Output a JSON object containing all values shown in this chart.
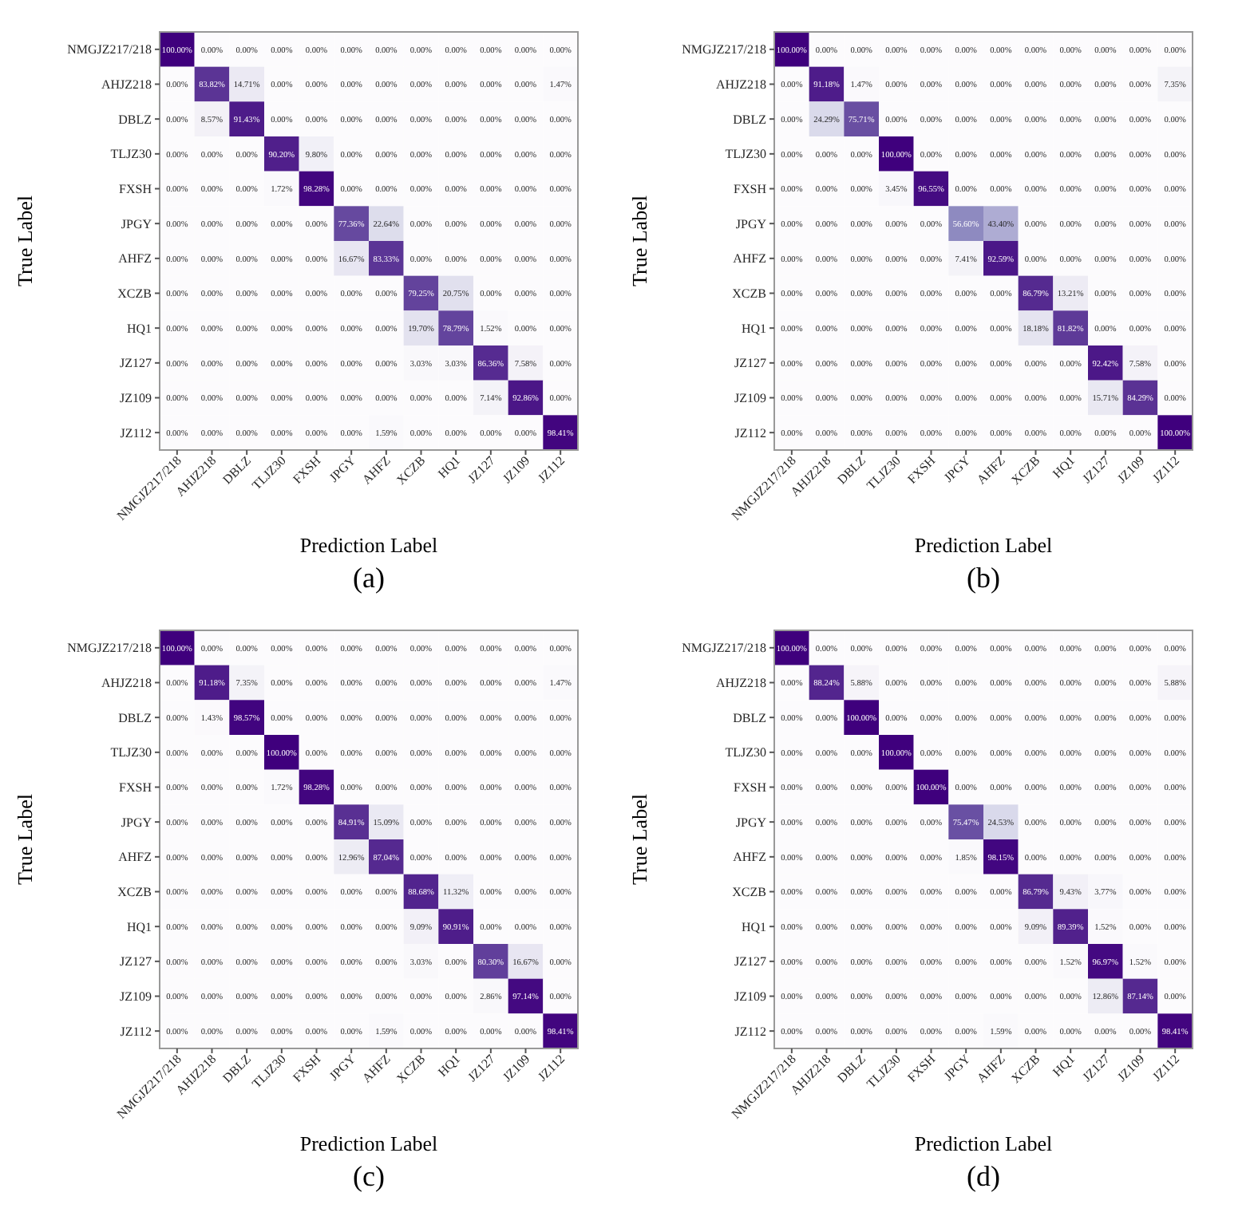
{
  "chart_data": [
    {
      "type": "heatmap",
      "title": "(a)",
      "xlabel": "Prediction Label",
      "ylabel": "True Label",
      "categories": [
        "NMGJZ217/218",
        "AHJZ218",
        "DBLZ",
        "TLJZ30",
        "FXSH",
        "JPGY",
        "AHFZ",
        "XCZB",
        "HQ1",
        "JZ127",
        "JZ109",
        "JZ112"
      ],
      "y_categories": [
        "NMGJZ217/218",
        "AHJZ218",
        "DBLZ",
        "TLJZ30",
        "FXSH",
        "JPGY",
        "AHFZ",
        "XCZB",
        "HQ1",
        "JZ127",
        "JZ109",
        "JZ112"
      ],
      "cells": [
        [
          100,
          0,
          0,
          0,
          0,
          0,
          0,
          0,
          0,
          0,
          0,
          0
        ],
        [
          0,
          83.82,
          14.71,
          0,
          0,
          0,
          0,
          0,
          0,
          0,
          0,
          1.47
        ],
        [
          0,
          8.57,
          91.43,
          0,
          0,
          0,
          0,
          0,
          0,
          0,
          0,
          0
        ],
        [
          0,
          0,
          0,
          90.2,
          9.8,
          0,
          0,
          0,
          0,
          0,
          0,
          0
        ],
        [
          0,
          0,
          0,
          1.72,
          98.28,
          0,
          0,
          0,
          0,
          0,
          0,
          0
        ],
        [
          0,
          0,
          0,
          0,
          0,
          77.36,
          22.64,
          0,
          0,
          0,
          0,
          0
        ],
        [
          0,
          0,
          0,
          0,
          0,
          16.67,
          83.33,
          0,
          0,
          0,
          0,
          0
        ],
        [
          0,
          0,
          0,
          0,
          0,
          0,
          0,
          79.25,
          20.75,
          0,
          0,
          0
        ],
        [
          0,
          0,
          0,
          0,
          0,
          0,
          0,
          19.7,
          78.79,
          1.52,
          0,
          0
        ],
        [
          0,
          0,
          0,
          0,
          0,
          0,
          0,
          3.03,
          3.03,
          86.36,
          7.58,
          0
        ],
        [
          0,
          0,
          0,
          0,
          0,
          0,
          0,
          0,
          0,
          7.14,
          92.86,
          0
        ],
        [
          0,
          0,
          0,
          0,
          0,
          0,
          1.59,
          0,
          0,
          0,
          0,
          98.41
        ]
      ],
      "cell_labels": [
        [
          "100.00%",
          "0.00%",
          "0.00%",
          "0.00%",
          "0.00%",
          "0.00%",
          "0.00%",
          "0.00%",
          "0.00%",
          "0.00%",
          "0.00%",
          "0.00%"
        ],
        [
          "0.00%",
          "83.82%",
          "14.71%",
          "0.00%",
          "0.00%",
          "0.00%",
          "0.00%",
          "0.00%",
          "0.00%",
          "0.00%",
          "0.00%",
          "1.47%"
        ],
        [
          "0.00%",
          "8.57%",
          "91.43%",
          "0.00%",
          "0.00%",
          "0.00%",
          "0.00%",
          "0.00%",
          "0.00%",
          "0.00%",
          "0.00%",
          "0.00%"
        ],
        [
          "0.00%",
          "0.00%",
          "0.00%",
          "90.20%",
          "9.80%",
          "0.00%",
          "0.00%",
          "0.00%",
          "0.00%",
          "0.00%",
          "0.00%",
          "0.00%"
        ],
        [
          "0.00%",
          "0.00%",
          "0.00%",
          "1.72%",
          "98.28%",
          "0.00%",
          "0.00%",
          "0.00%",
          "0.00%",
          "0.00%",
          "0.00%",
          "0.00%"
        ],
        [
          "0.00%",
          "0.00%",
          "0.00%",
          "0.00%",
          "0.00%",
          "77.36%",
          "22.64%",
          "0.00%",
          "0.00%",
          "0.00%",
          "0.00%",
          "0.00%"
        ],
        [
          "0.00%",
          "0.00%",
          "0.00%",
          "0.00%",
          "0.00%",
          "16.67%",
          "83.33%",
          "0.00%",
          "0.00%",
          "0.00%",
          "0.00%",
          "0.00%"
        ],
        [
          "0.00%",
          "0.00%",
          "0.00%",
          "0.00%",
          "0.00%",
          "0.00%",
          "0.00%",
          "79.25%",
          "20.75%",
          "0.00%",
          "0.00%",
          "0.00%"
        ],
        [
          "0.00%",
          "0.00%",
          "0.00%",
          "0.00%",
          "0.00%",
          "0.00%",
          "0.00%",
          "19.70%",
          "78.79%",
          "1.52%",
          "0.00%",
          "0.00%"
        ],
        [
          "0.00%",
          "0.00%",
          "0.00%",
          "0.00%",
          "0.00%",
          "0.00%",
          "0.00%",
          "3.03%",
          "3.03%",
          "86.36%",
          "7.58%",
          "0.00%"
        ],
        [
          "0.00%",
          "0.00%",
          "0.00%",
          "0.00%",
          "0.00%",
          "0.00%",
          "0.00%",
          "0.00%",
          "0.00%",
          "7.14%",
          "92.86%",
          "0.00%"
        ],
        [
          "0.00%",
          "0.00%",
          "0.00%",
          "0.00%",
          "0.00%",
          "0.00%",
          "1.59%",
          "0.00%",
          "0.00%",
          "0.00%",
          "0.00%",
          "98.41%"
        ]
      ]
    },
    {
      "type": "heatmap",
      "title": "(b)",
      "xlabel": "Prediction Label",
      "ylabel": "True Label",
      "categories": [
        "NMGJZ217/218",
        "AHJZ218",
        "DBLZ",
        "TLJZ30",
        "FXSH",
        "JPGY",
        "AHFZ",
        "XCZB",
        "HQ1",
        "JZ127",
        "JZ109",
        "JZ112"
      ],
      "y_categories": [
        "NMGJZ217/218",
        "AHJZ218",
        "DBLZ",
        "TLJZ30",
        "FXSH",
        "JPGY",
        "AHFZ",
        "XCZB",
        "HQ1",
        "JZ127",
        "JZ109",
        "JZ112"
      ],
      "cells": [
        [
          100,
          0,
          0,
          0,
          0,
          0,
          0,
          0,
          0,
          0,
          0,
          0
        ],
        [
          0,
          91.18,
          1.47,
          0,
          0,
          0,
          0,
          0,
          0,
          0,
          0,
          7.35
        ],
        [
          0,
          24.29,
          75.71,
          0,
          0,
          0,
          0,
          0,
          0,
          0,
          0,
          0
        ],
        [
          0,
          0,
          0,
          100,
          0,
          0,
          0,
          0,
          0,
          0,
          0,
          0
        ],
        [
          0,
          0,
          0,
          3.45,
          96.55,
          0,
          0,
          0,
          0,
          0,
          0,
          0
        ],
        [
          0,
          0,
          0,
          0,
          0,
          56.6,
          43.4,
          0,
          0,
          0,
          0,
          0
        ],
        [
          0,
          0,
          0,
          0,
          0,
          7.41,
          92.59,
          0,
          0,
          0,
          0,
          0
        ],
        [
          0,
          0,
          0,
          0,
          0,
          0,
          0,
          86.79,
          13.21,
          0,
          0,
          0
        ],
        [
          0,
          0,
          0,
          0,
          0,
          0,
          0,
          18.18,
          81.82,
          0,
          0,
          0
        ],
        [
          0,
          0,
          0,
          0,
          0,
          0,
          0,
          0,
          0,
          92.42,
          7.58,
          0
        ],
        [
          0,
          0,
          0,
          0,
          0,
          0,
          0,
          0,
          0,
          15.71,
          84.29,
          0
        ],
        [
          0,
          0,
          0,
          0,
          0,
          0,
          0,
          0,
          0,
          0,
          0,
          100
        ]
      ],
      "cell_labels": [
        [
          "100.00%",
          "0.00%",
          "0.00%",
          "0.00%",
          "0.00%",
          "0.00%",
          "0.00%",
          "0.00%",
          "0.00%",
          "0.00%",
          "0.00%",
          "0.00%"
        ],
        [
          "0.00%",
          "91.18%",
          "1.47%",
          "0.00%",
          "0.00%",
          "0.00%",
          "0.00%",
          "0.00%",
          "0.00%",
          "0.00%",
          "0.00%",
          "7.35%"
        ],
        [
          "0.00%",
          "24.29%",
          "75.71%",
          "0.00%",
          "0.00%",
          "0.00%",
          "0.00%",
          "0.00%",
          "0.00%",
          "0.00%",
          "0.00%",
          "0.00%"
        ],
        [
          "0.00%",
          "0.00%",
          "0.00%",
          "100.00%",
          "0.00%",
          "0.00%",
          "0.00%",
          "0.00%",
          "0.00%",
          "0.00%",
          "0.00%",
          "0.00%"
        ],
        [
          "0.00%",
          "0.00%",
          "0.00%",
          "3.45%",
          "96.55%",
          "0.00%",
          "0.00%",
          "0.00%",
          "0.00%",
          "0.00%",
          "0.00%",
          "0.00%"
        ],
        [
          "0.00%",
          "0.00%",
          "0.00%",
          "0.00%",
          "0.00%",
          "56.60%",
          "43.40%",
          "0.00%",
          "0.00%",
          "0.00%",
          "0.00%",
          "0.00%"
        ],
        [
          "0.00%",
          "0.00%",
          "0.00%",
          "0.00%",
          "0.00%",
          "7.41%",
          "92.59%",
          "0.00%",
          "0.00%",
          "0.00%",
          "0.00%",
          "0.00%"
        ],
        [
          "0.00%",
          "0.00%",
          "0.00%",
          "0.00%",
          "0.00%",
          "0.00%",
          "0.00%",
          "86.79%",
          "13.21%",
          "0.00%",
          "0.00%",
          "0.00%"
        ],
        [
          "0.00%",
          "0.00%",
          "0.00%",
          "0.00%",
          "0.00%",
          "0.00%",
          "0.00%",
          "18.18%",
          "81.82%",
          "0.00%",
          "0.00%",
          "0.00%"
        ],
        [
          "0.00%",
          "0.00%",
          "0.00%",
          "0.00%",
          "0.00%",
          "0.00%",
          "0.00%",
          "0.00%",
          "0.00%",
          "92.42%",
          "7.58%",
          "0.00%"
        ],
        [
          "0.00%",
          "0.00%",
          "0.00%",
          "0.00%",
          "0.00%",
          "0.00%",
          "0.00%",
          "0.00%",
          "0.00%",
          "15.71%",
          "84.29%",
          "0.00%"
        ],
        [
          "0.00%",
          "0.00%",
          "0.00%",
          "0.00%",
          "0.00%",
          "0.00%",
          "0.00%",
          "0.00%",
          "0.00%",
          "0.00%",
          "0.00%",
          "100.00%"
        ]
      ]
    },
    {
      "type": "heatmap",
      "title": "(c)",
      "xlabel": "Prediction Label",
      "ylabel": "True Label",
      "categories": [
        "NMGJZ217/218",
        "AHJZ218",
        "DBLZ",
        "TLJZ30",
        "FXSH",
        "JPGY",
        "AHFZ",
        "XCZB",
        "HQ1",
        "JZ127",
        "JZ109",
        "JZ112"
      ],
      "y_categories": [
        "NMGJZ217/218",
        "AHJZ218",
        "DBLZ",
        "TLJZ30",
        "FXSH",
        "JPGY",
        "AHFZ",
        "XCZB",
        "HQ1",
        "JZ127",
        "JZ109",
        "JZ112"
      ],
      "cells": [
        [
          100,
          0,
          0,
          0,
          0,
          0,
          0,
          0,
          0,
          0,
          0,
          0
        ],
        [
          0,
          91.18,
          7.35,
          0,
          0,
          0,
          0,
          0,
          0,
          0,
          0,
          1.47
        ],
        [
          0,
          1.43,
          98.57,
          0,
          0,
          0,
          0,
          0,
          0,
          0,
          0,
          0
        ],
        [
          0,
          0,
          0,
          100,
          0,
          0,
          0,
          0,
          0,
          0,
          0,
          0
        ],
        [
          0,
          0,
          0,
          1.72,
          98.28,
          0,
          0,
          0,
          0,
          0,
          0,
          0
        ],
        [
          0,
          0,
          0,
          0,
          0,
          84.91,
          15.09,
          0,
          0,
          0,
          0,
          0
        ],
        [
          0,
          0,
          0,
          0,
          0,
          12.96,
          87.04,
          0,
          0,
          0,
          0,
          0
        ],
        [
          0,
          0,
          0,
          0,
          0,
          0,
          0,
          88.68,
          11.32,
          0,
          0,
          0
        ],
        [
          0,
          0,
          0,
          0,
          0,
          0,
          0,
          9.09,
          90.91,
          0,
          0,
          0
        ],
        [
          0,
          0,
          0,
          0,
          0,
          0,
          0,
          3.03,
          0,
          80.3,
          16.67,
          0
        ],
        [
          0,
          0,
          0,
          0,
          0,
          0,
          0,
          0,
          0,
          2.86,
          97.14,
          0
        ],
        [
          0,
          0,
          0,
          0,
          0,
          0,
          1.59,
          0,
          0,
          0,
          0,
          98.41
        ]
      ],
      "cell_labels": [
        [
          "100.00%",
          "0.00%",
          "0.00%",
          "0.00%",
          "0.00%",
          "0.00%",
          "0.00%",
          "0.00%",
          "0.00%",
          "0.00%",
          "0.00%",
          "0.00%"
        ],
        [
          "0.00%",
          "91.18%",
          "7.35%",
          "0.00%",
          "0.00%",
          "0.00%",
          "0.00%",
          "0.00%",
          "0.00%",
          "0.00%",
          "0.00%",
          "1.47%"
        ],
        [
          "0.00%",
          "1.43%",
          "98.57%",
          "0.00%",
          "0.00%",
          "0.00%",
          "0.00%",
          "0.00%",
          "0.00%",
          "0.00%",
          "0.00%",
          "0.00%"
        ],
        [
          "0.00%",
          "0.00%",
          "0.00%",
          "100.00%",
          "0.00%",
          "0.00%",
          "0.00%",
          "0.00%",
          "0.00%",
          "0.00%",
          "0.00%",
          "0.00%"
        ],
        [
          "0.00%",
          "0.00%",
          "0.00%",
          "1.72%",
          "98.28%",
          "0.00%",
          "0.00%",
          "0.00%",
          "0.00%",
          "0.00%",
          "0.00%",
          "0.00%"
        ],
        [
          "0.00%",
          "0.00%",
          "0.00%",
          "0.00%",
          "0.00%",
          "84.91%",
          "15.09%",
          "0.00%",
          "0.00%",
          "0.00%",
          "0.00%",
          "0.00%"
        ],
        [
          "0.00%",
          "0.00%",
          "0.00%",
          "0.00%",
          "0.00%",
          "12.96%",
          "87.04%",
          "0.00%",
          "0.00%",
          "0.00%",
          "0.00%",
          "0.00%"
        ],
        [
          "0.00%",
          "0.00%",
          "0.00%",
          "0.00%",
          "0.00%",
          "0.00%",
          "0.00%",
          "88.68%",
          "11.32%",
          "0.00%",
          "0.00%",
          "0.00%"
        ],
        [
          "0.00%",
          "0.00%",
          "0.00%",
          "0.00%",
          "0.00%",
          "0.00%",
          "0.00%",
          "9.09%",
          "90.91%",
          "0.00%",
          "0.00%",
          "0.00%"
        ],
        [
          "0.00%",
          "0.00%",
          "0.00%",
          "0.00%",
          "0.00%",
          "0.00%",
          "0.00%",
          "3.03%",
          "0.00%",
          "80.30%",
          "16.67%",
          "0.00%"
        ],
        [
          "0.00%",
          "0.00%",
          "0.00%",
          "0.00%",
          "0.00%",
          "0.00%",
          "0.00%",
          "0.00%",
          "0.00%",
          "2.86%",
          "97.14%",
          "0.00%"
        ],
        [
          "0.00%",
          "0.00%",
          "0.00%",
          "0.00%",
          "0.00%",
          "0.00%",
          "1.59%",
          "0.00%",
          "0.00%",
          "0.00%",
          "0.00%",
          "98.41%"
        ]
      ]
    },
    {
      "type": "heatmap",
      "title": "(d)",
      "xlabel": "Prediction Label",
      "ylabel": "True Label",
      "categories": [
        "NMGJZ217/218",
        "AHJZ218",
        "DBLZ",
        "TLJZ30",
        "FXSH",
        "JPGY",
        "AHFZ",
        "XCZB",
        "HQ1",
        "JZ127",
        "JZ109",
        "JZ112"
      ],
      "y_categories": [
        "NMGJZ217/218",
        "AHJZ218",
        "DBLZ",
        "TLJZ30",
        "FXSH",
        "JPGY",
        "AHFZ",
        "XCZB",
        "HQ1",
        "JZ127",
        "JZ109",
        "JZ112"
      ],
      "cells": [
        [
          100,
          0,
          0,
          0,
          0,
          0,
          0,
          0,
          0,
          0,
          0,
          0
        ],
        [
          0,
          88.24,
          5.88,
          0,
          0,
          0,
          0,
          0,
          0,
          0,
          0,
          5.88
        ],
        [
          0,
          0,
          100,
          0,
          0,
          0,
          0,
          0,
          0,
          0,
          0,
          0
        ],
        [
          0,
          0,
          0,
          100,
          0,
          0,
          0,
          0,
          0,
          0,
          0,
          0
        ],
        [
          0,
          0,
          0,
          0,
          100,
          0,
          0,
          0,
          0,
          0,
          0,
          0
        ],
        [
          0,
          0,
          0,
          0,
          0,
          75.47,
          24.53,
          0,
          0,
          0,
          0,
          0
        ],
        [
          0,
          0,
          0,
          0,
          0,
          1.85,
          98.15,
          0,
          0,
          0,
          0,
          0
        ],
        [
          0,
          0,
          0,
          0,
          0,
          0,
          0,
          86.79,
          9.43,
          3.77,
          0,
          0
        ],
        [
          0,
          0,
          0,
          0,
          0,
          0,
          0,
          9.09,
          89.39,
          1.52,
          0,
          0
        ],
        [
          0,
          0,
          0,
          0,
          0,
          0,
          0,
          0,
          1.52,
          96.97,
          1.52,
          0
        ],
        [
          0,
          0,
          0,
          0,
          0,
          0,
          0,
          0,
          0,
          12.86,
          87.14,
          0
        ],
        [
          0,
          0,
          0,
          0,
          0,
          0,
          1.59,
          0,
          0,
          0,
          0,
          98.41
        ]
      ],
      "cell_labels": [
        [
          "100.00%",
          "0.00%",
          "0.00%",
          "0.00%",
          "0.00%",
          "0.00%",
          "0.00%",
          "0.00%",
          "0.00%",
          "0.00%",
          "0.00%",
          "0.00%"
        ],
        [
          "0.00%",
          "88.24%",
          "5.88%",
          "0.00%",
          "0.00%",
          "0.00%",
          "0.00%",
          "0.00%",
          "0.00%",
          "0.00%",
          "0.00%",
          "5.88%"
        ],
        [
          "0.00%",
          "0.00%",
          "100.00%",
          "0.00%",
          "0.00%",
          "0.00%",
          "0.00%",
          "0.00%",
          "0.00%",
          "0.00%",
          "0.00%",
          "0.00%"
        ],
        [
          "0.00%",
          "0.00%",
          "0.00%",
          "100.00%",
          "0.00%",
          "0.00%",
          "0.00%",
          "0.00%",
          "0.00%",
          "0.00%",
          "0.00%",
          "0.00%"
        ],
        [
          "0.00%",
          "0.00%",
          "0.00%",
          "0.00%",
          "100.00%",
          "0.00%",
          "0.00%",
          "0.00%",
          "0.00%",
          "0.00%",
          "0.00%",
          "0.00%"
        ],
        [
          "0.00%",
          "0.00%",
          "0.00%",
          "0.00%",
          "0.00%",
          "75.47%",
          "24.53%",
          "0.00%",
          "0.00%",
          "0.00%",
          "0.00%",
          "0.00%"
        ],
        [
          "0.00%",
          "0.00%",
          "0.00%",
          "0.00%",
          "0.00%",
          "1.85%",
          "98.15%",
          "0.00%",
          "0.00%",
          "0.00%",
          "0.00%",
          "0.00%"
        ],
        [
          "0.00%",
          "0.00%",
          "0.00%",
          "0.00%",
          "0.00%",
          "0.00%",
          "0.00%",
          "86.79%",
          "9.43%",
          "3.77%",
          "0.00%",
          "0.00%"
        ],
        [
          "0.00%",
          "0.00%",
          "0.00%",
          "0.00%",
          "0.00%",
          "0.00%",
          "0.00%",
          "9.09%",
          "89.39%",
          "1.52%",
          "0.00%",
          "0.00%"
        ],
        [
          "0.00%",
          "0.00%",
          "0.00%",
          "0.00%",
          "0.00%",
          "0.00%",
          "0.00%",
          "0.00%",
          "1.52%",
          "96.97%",
          "1.52%",
          "0.00%"
        ],
        [
          "0.00%",
          "0.00%",
          "0.00%",
          "0.00%",
          "0.00%",
          "0.00%",
          "0.00%",
          "0.00%",
          "0.00%",
          "12.86%",
          "87.14%",
          "0.00%"
        ],
        [
          "0.00%",
          "0.00%",
          "0.00%",
          "0.00%",
          "0.00%",
          "0.00%",
          "1.59%",
          "0.00%",
          "0.00%",
          "0.00%",
          "0.00%",
          "98.41%"
        ]
      ]
    }
  ]
}
